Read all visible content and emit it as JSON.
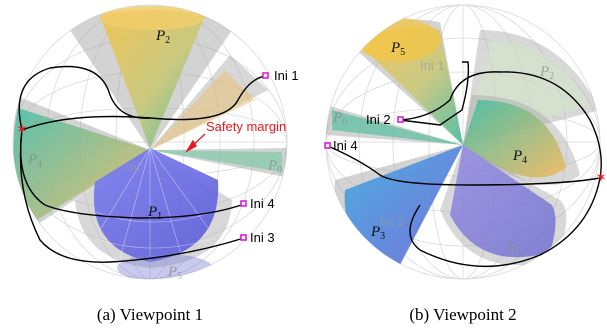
{
  "viewpoint1": {
    "caption": "(a) Viewpoint 1",
    "cones": [
      {
        "label": "P",
        "sub": "2"
      },
      {
        "label": "P",
        "sub": "1"
      },
      {
        "label": "P",
        "sub": "0"
      },
      {
        "label": "P",
        "sub": "4"
      },
      {
        "label": "P",
        "sub": "5"
      },
      {
        "label": "P",
        "sub": "3"
      }
    ],
    "initials": [
      {
        "label": "Ini 1"
      },
      {
        "label": "Ini 4"
      },
      {
        "label": "Ini 3"
      },
      {
        "label": "Ini"
      }
    ],
    "annotation": "Safety margin"
  },
  "viewpoint2": {
    "caption": "(b) Viewpoint 2",
    "cones": [
      {
        "label": "P",
        "sub": "5"
      },
      {
        "label": "P",
        "sub": "2"
      },
      {
        "label": "P",
        "sub": "0"
      },
      {
        "label": "P",
        "sub": "4"
      },
      {
        "label": "P",
        "sub": "3"
      },
      {
        "label": "P",
        "sub": "1"
      }
    ],
    "initials": [
      {
        "label": "Ini 2"
      },
      {
        "label": "Ini 4"
      },
      {
        "label": "Ini 1"
      },
      {
        "label": "Ini 3"
      }
    ]
  },
  "colors": {
    "path": "#000000",
    "target": "#e8191e",
    "initial": "#d61fd6",
    "annotation": "#e8191e",
    "margin": "#a0a0a0"
  }
}
